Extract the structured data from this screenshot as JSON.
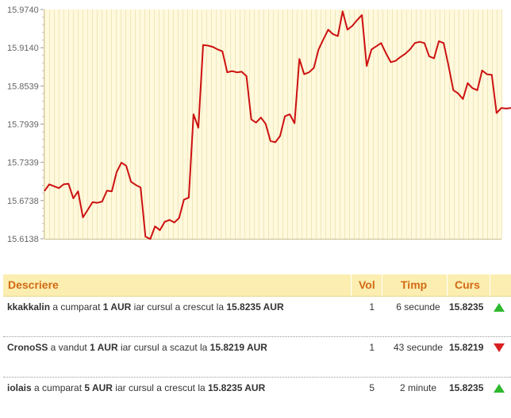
{
  "chart_data": {
    "type": "line",
    "y_ticks": [
      "15.9740",
      "15.9140",
      "15.8539",
      "15.7939",
      "15.7339",
      "15.6738",
      "15.6138"
    ],
    "ylim": [
      15.6138,
      15.974
    ],
    "series": [
      {
        "color": "#cc1111",
        "values": [
          15.6888,
          15.6993,
          15.6963,
          15.6933,
          15.6993,
          15.7003,
          15.6773,
          15.6883,
          15.6473,
          15.6593,
          15.6713,
          15.6703,
          15.6723,
          15.6893,
          15.6883,
          15.7183,
          15.7333,
          15.7283,
          15.7033,
          15.6983,
          15.6943,
          15.6173,
          15.6133,
          15.6333,
          15.6273,
          15.6403,
          15.6433,
          15.6393,
          15.6463,
          15.6753,
          15.6783,
          15.8093,
          15.7883,
          15.9183,
          15.9173,
          15.9153,
          15.9113,
          15.9083,
          15.8753,
          15.8773,
          15.8753,
          15.8763,
          15.8693,
          15.8013,
          15.7963,
          15.8043,
          15.7943,
          15.7673,
          15.7653,
          15.7753,
          15.8063,
          15.8093,
          15.7953,
          15.8963,
          15.8723,
          15.8753,
          15.8823,
          15.9113,
          15.9273,
          15.9423,
          15.9353,
          15.9323,
          15.9713,
          15.9423,
          15.9483,
          15.9573,
          15.9653,
          15.8853,
          15.9113,
          15.9163,
          15.9213,
          15.9053,
          15.8913,
          15.8933,
          15.8993,
          15.9043,
          15.9113,
          15.9213,
          15.9233,
          15.9213,
          15.9003,
          15.8973,
          15.9243,
          15.9213,
          15.8863,
          15.8473,
          15.8423,
          15.8333,
          15.8583,
          15.8503,
          15.8473,
          15.8783,
          15.8723,
          15.8713,
          15.8113,
          15.8193,
          15.8183,
          15.8193
        ]
      }
    ],
    "plot_bg": "#fff9dd",
    "grid": true
  },
  "trades": {
    "headers": {
      "description": "Descriere",
      "volume": "Vol",
      "time": "Timp",
      "price": "Curs"
    },
    "rows": [
      {
        "user": "kkakkalin",
        "action": " a cumparat ",
        "amount": "1 AUR",
        "middle": " iar cursul a crescut la ",
        "new_price": "15.8235 AUR",
        "volume": "1",
        "time": "6 secunde",
        "price": "15.8235",
        "trend": "up",
        "trend_icon": "arrow-up-icon"
      },
      {
        "user": "CronoSS",
        "action": " a vandut ",
        "amount": "1 AUR",
        "middle": " iar cursul a scazut la ",
        "new_price": "15.8219 AUR",
        "volume": "1",
        "time": "43 secunde",
        "price": "15.8219",
        "trend": "down",
        "trend_icon": "arrow-down-icon"
      },
      {
        "user": "iolais",
        "action": " a cumparat ",
        "amount": "5 AUR",
        "middle": " iar cursul a crescut la ",
        "new_price": "15.8235 AUR",
        "volume": "5",
        "time": "2 minute",
        "price": "15.8235",
        "trend": "up",
        "trend_icon": "arrow-up-icon"
      }
    ]
  },
  "colors": {
    "header_bg": "#fbeeb0",
    "header_text": "#d26a14",
    "up": "#2eb82e",
    "down": "#d92020"
  }
}
